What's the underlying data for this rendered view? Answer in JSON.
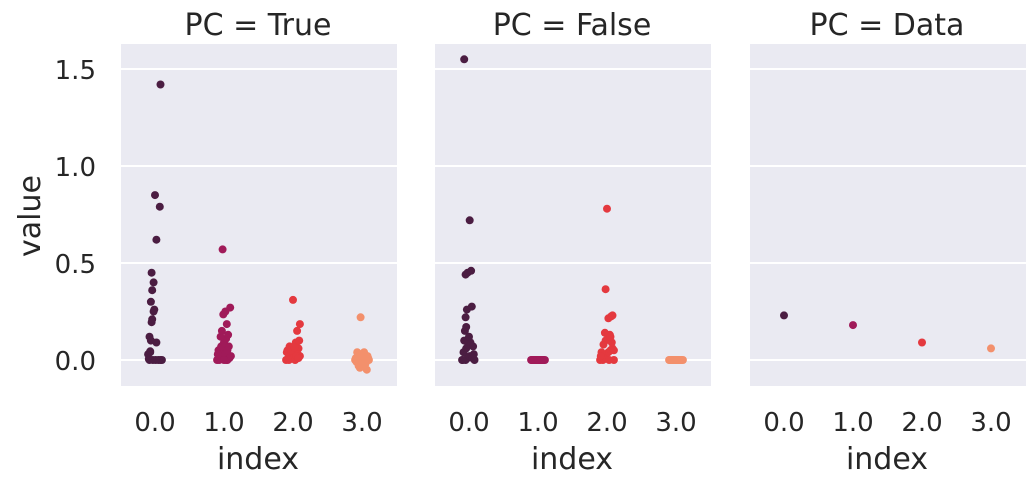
{
  "chart_data": {
    "type": "scatter",
    "subtype": "strip",
    "ylabel": "value",
    "xlabel": "index",
    "categories": [
      "0.0",
      "1.0",
      "2.0",
      "3.0"
    ],
    "y_ticks": [
      "0.0",
      "0.5",
      "1.0",
      "1.5"
    ],
    "ylim": [
      -0.12,
      1.62
    ],
    "sharey": true,
    "grid": true,
    "palette": {
      "0.0": "#4b1d42",
      "1.0": "#a01a59",
      "2.0": "#e4393f",
      "3.0": "#f3906c"
    },
    "panels": [
      {
        "title": "PC = True",
        "series": [
          {
            "category": "0.0",
            "points": [
              [
                -0.09,
                0.005
              ],
              [
                -0.07,
                0.04
              ],
              [
                -0.08,
                0.12
              ],
              [
                -0.06,
                0.1
              ],
              [
                -0.05,
                0.195
              ],
              [
                -0.04,
                0.21
              ],
              [
                -0.02,
                0.25
              ],
              [
                -0.01,
                0.26
              ],
              [
                0.02,
                0.09
              ],
              [
                0.08,
                0.0
              ],
              [
                0.1,
                0.0
              ],
              [
                -0.1,
                0.03
              ],
              [
                -0.06,
                0.3
              ],
              [
                -0.04,
                0.36
              ],
              [
                -0.02,
                0.4
              ],
              [
                -0.05,
                0.45
              ],
              [
                0.02,
                0.62
              ],
              [
                0.0,
                0.85
              ],
              [
                0.07,
                0.79
              ],
              [
                0.08,
                1.42
              ],
              [
                -0.08,
                0.0
              ],
              [
                -0.03,
                0.0
              ],
              [
                0.05,
                0.0
              ],
              [
                -0.07,
                0.045
              ],
              [
                0.01,
                0.0
              ]
            ]
          },
          {
            "category": "1.0",
            "points": [
              [
                -0.1,
                0.0
              ],
              [
                -0.06,
                0.02
              ],
              [
                -0.02,
                0.04
              ],
              [
                0.01,
                0.03
              ],
              [
                0.05,
                0.0
              ],
              [
                0.08,
                0.01
              ],
              [
                -0.08,
                0.05
              ],
              [
                -0.04,
                0.07
              ],
              [
                0.0,
                0.09
              ],
              [
                0.03,
                0.11
              ],
              [
                0.06,
                0.13
              ],
              [
                -0.05,
                0.12
              ],
              [
                -0.03,
                0.15
              ],
              [
                0.04,
                0.185
              ],
              [
                0.07,
                0.07
              ],
              [
                -0.01,
                0.235
              ],
              [
                0.02,
                0.25
              ],
              [
                0.09,
                0.27
              ],
              [
                -0.02,
                0.57
              ],
              [
                -0.07,
                0.0
              ],
              [
                0.03,
                0.0
              ],
              [
                0.1,
                0.02
              ],
              [
                0.05,
                0.05
              ],
              [
                -0.09,
                0.03
              ],
              [
                0.0,
                0.0
              ]
            ]
          },
          {
            "category": "2.0",
            "points": [
              [
                -0.1,
                0.0
              ],
              [
                -0.07,
                0.01
              ],
              [
                -0.04,
                0.02
              ],
              [
                -0.01,
                0.03
              ],
              [
                0.02,
                0.04
              ],
              [
                0.05,
                0.05
              ],
              [
                0.08,
                0.06
              ],
              [
                0.1,
                0.02
              ],
              [
                -0.08,
                0.05
              ],
              [
                -0.05,
                0.07
              ],
              [
                -0.02,
                0.06
              ],
              [
                0.01,
                0.01
              ],
              [
                0.04,
                0.09
              ],
              [
                0.07,
                0.03
              ],
              [
                0.09,
                0.1
              ],
              [
                0.06,
                0.15
              ],
              [
                0.1,
                0.185
              ],
              [
                0.0,
                0.31
              ],
              [
                -0.06,
                0.0
              ],
              [
                0.03,
                0.0
              ],
              [
                -0.09,
                0.04
              ],
              [
                0.05,
                0.02
              ],
              [
                -0.03,
                0.05
              ],
              [
                0.08,
                0.01
              ],
              [
                0.02,
                0.065
              ]
            ]
          },
          {
            "category": "3.0",
            "points": [
              [
                -0.1,
                0.0
              ],
              [
                -0.08,
                -0.01
              ],
              [
                -0.06,
                0.02
              ],
              [
                -0.04,
                -0.02
              ],
              [
                -0.02,
                0.03
              ],
              [
                0.0,
                0.0
              ],
              [
                0.02,
                -0.03
              ],
              [
                0.04,
                0.01
              ],
              [
                0.06,
                -0.01
              ],
              [
                0.08,
                0.02
              ],
              [
                0.1,
                0.0
              ],
              [
                -0.07,
                0.04
              ],
              [
                -0.03,
                -0.04
              ],
              [
                0.01,
                0.03
              ],
              [
                0.05,
                -0.02
              ],
              [
                0.09,
                0.01
              ],
              [
                0.07,
                -0.05
              ],
              [
                -0.05,
                -0.03
              ],
              [
                -0.09,
                0.01
              ],
              [
                0.03,
                0.04
              ],
              [
                -0.01,
                0.02
              ],
              [
                0.06,
                0.0
              ],
              [
                -0.02,
                0.22
              ],
              [
                0.04,
                -0.02
              ]
            ]
          }
        ]
      },
      {
        "title": "PC = False",
        "series": [
          {
            "category": "0.0",
            "points": [
              [
                -0.09,
                0.0
              ],
              [
                -0.05,
                0.0
              ],
              [
                -0.02,
                0.01
              ],
              [
                0.01,
                0.02
              ],
              [
                0.05,
                0.01
              ],
              [
                0.08,
                0.0
              ],
              [
                -0.08,
                0.04
              ],
              [
                -0.04,
                0.06
              ],
              [
                -0.01,
                0.08
              ],
              [
                0.02,
                0.09
              ],
              [
                0.06,
                0.07
              ],
              [
                -0.07,
                0.1
              ],
              [
                -0.06,
                0.15
              ],
              [
                -0.04,
                0.17
              ],
              [
                -0.05,
                0.22
              ],
              [
                -0.03,
                0.26
              ],
              [
                0.04,
                0.275
              ],
              [
                -0.05,
                0.44
              ],
              [
                -0.02,
                0.45
              ],
              [
                0.03,
                0.46
              ],
              [
                0.01,
                0.72
              ],
              [
                -0.07,
                1.55
              ],
              [
                0.07,
                0.03
              ],
              [
                -0.1,
                0.0
              ],
              [
                0.0,
                0.12
              ]
            ]
          },
          {
            "category": "1.0",
            "points": [
              [
                -0.1,
                0.0
              ],
              [
                -0.08,
                0.0
              ],
              [
                -0.06,
                0.0
              ],
              [
                -0.04,
                0.0
              ],
              [
                -0.02,
                0.0
              ],
              [
                0.0,
                0.0
              ],
              [
                0.02,
                0.0
              ],
              [
                0.04,
                0.0
              ],
              [
                0.06,
                0.0
              ],
              [
                0.08,
                0.0
              ],
              [
                0.1,
                0.0
              ],
              [
                -0.09,
                0.0
              ],
              [
                -0.07,
                0.0
              ],
              [
                -0.05,
                0.0
              ],
              [
                -0.03,
                0.0
              ],
              [
                -0.01,
                0.0
              ],
              [
                0.01,
                0.0
              ],
              [
                0.03,
                0.0
              ],
              [
                0.05,
                0.0
              ],
              [
                0.07,
                0.0
              ]
            ]
          },
          {
            "category": "2.0",
            "points": [
              [
                -0.1,
                0.0
              ],
              [
                -0.07,
                0.01
              ],
              [
                -0.04,
                0.02
              ],
              [
                -0.01,
                0.03
              ],
              [
                0.02,
                0.04
              ],
              [
                0.05,
                0.05
              ],
              [
                0.08,
                0.06
              ],
              [
                0.1,
                0.0
              ],
              [
                -0.08,
                0.04
              ],
              [
                -0.05,
                0.08
              ],
              [
                -0.02,
                0.1
              ],
              [
                0.01,
                0.11
              ],
              [
                0.04,
                0.13
              ],
              [
                0.07,
                0.09
              ],
              [
                0.1,
                0.05
              ],
              [
                -0.03,
                0.14
              ],
              [
                0.05,
                0.12
              ],
              [
                0.02,
                0.215
              ],
              [
                0.06,
                0.225
              ],
              [
                0.08,
                0.23
              ],
              [
                -0.02,
                0.365
              ],
              [
                0.0,
                0.78
              ],
              [
                -0.06,
                0.0
              ],
              [
                0.03,
                0.0
              ],
              [
                -0.09,
                0.02
              ]
            ]
          },
          {
            "category": "3.0",
            "points": [
              [
                -0.1,
                0.0
              ],
              [
                -0.08,
                0.0
              ],
              [
                -0.06,
                0.0
              ],
              [
                -0.04,
                0.0
              ],
              [
                -0.02,
                0.0
              ],
              [
                0.0,
                0.0
              ],
              [
                0.02,
                0.0
              ],
              [
                0.04,
                0.0
              ],
              [
                0.06,
                0.0
              ],
              [
                0.08,
                0.0
              ],
              [
                0.1,
                0.0
              ],
              [
                -0.09,
                0.0
              ],
              [
                -0.07,
                0.0
              ],
              [
                -0.05,
                0.0
              ],
              [
                -0.03,
                0.0
              ],
              [
                -0.01,
                0.0
              ],
              [
                0.01,
                0.0
              ],
              [
                0.03,
                0.0
              ],
              [
                0.05,
                0.0
              ],
              [
                0.07,
                0.0
              ]
            ]
          }
        ]
      },
      {
        "title": "PC = Data",
        "series": [
          {
            "category": "0.0",
            "points": [
              [
                0.0,
                0.23
              ]
            ]
          },
          {
            "category": "1.0",
            "points": [
              [
                0.0,
                0.18
              ]
            ]
          },
          {
            "category": "2.0",
            "points": [
              [
                0.0,
                0.09
              ]
            ]
          },
          {
            "category": "3.0",
            "points": [
              [
                0.0,
                0.06
              ]
            ]
          }
        ]
      }
    ]
  }
}
